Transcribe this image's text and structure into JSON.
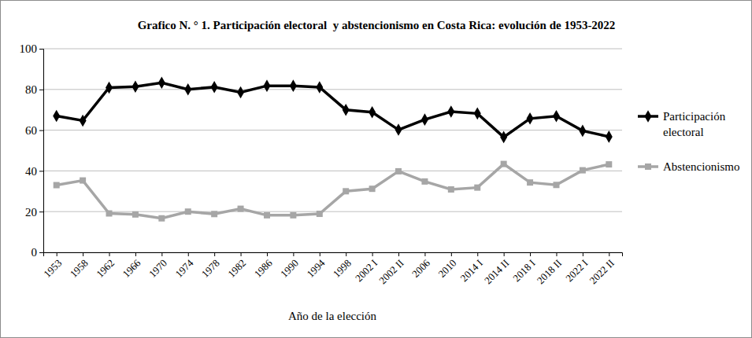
{
  "chart_data": {
    "type": "line",
    "title": "Grafico N. ° 1. Participación electoral  y abstencionismo en Costa Rica: evolución de 1953-2022",
    "x_label": "Año de la elección",
    "categories": [
      "1953",
      "1958",
      "1962",
      "1966",
      "1970",
      "1974",
      "1978",
      "1982",
      "1986",
      "1990",
      "1994",
      "1998",
      "2002 I",
      "2002 II",
      "2006",
      "2010",
      "2014 I",
      "2014 II",
      "2018 I",
      "2018 II",
      "2022 I",
      "2022 II"
    ],
    "series": [
      {
        "name": "Participación electoral",
        "color": "#000000",
        "marker": "diamond",
        "values": [
          67,
          64.7,
          80.9,
          81.4,
          83.3,
          80,
          81.2,
          78.6,
          81.8,
          81.8,
          81.1,
          70,
          68.8,
          60.2,
          65.2,
          69.1,
          68.2,
          56.6,
          65.7,
          66.9,
          59.7,
          56.8
        ]
      },
      {
        "name": "Abstencionismo",
        "color": "#a6a6a6",
        "marker": "square",
        "values": [
          33,
          35.3,
          19.1,
          18.6,
          16.7,
          20,
          18.8,
          21.4,
          18.2,
          18.2,
          18.9,
          30,
          31.2,
          39.8,
          34.8,
          30.9,
          31.8,
          43.4,
          34.3,
          33.1,
          40.3,
          43.2
        ]
      }
    ],
    "ylim": [
      0,
      100
    ],
    "yticks": [
      0,
      20,
      40,
      60,
      80,
      100
    ],
    "grid": true,
    "legend": "right"
  }
}
